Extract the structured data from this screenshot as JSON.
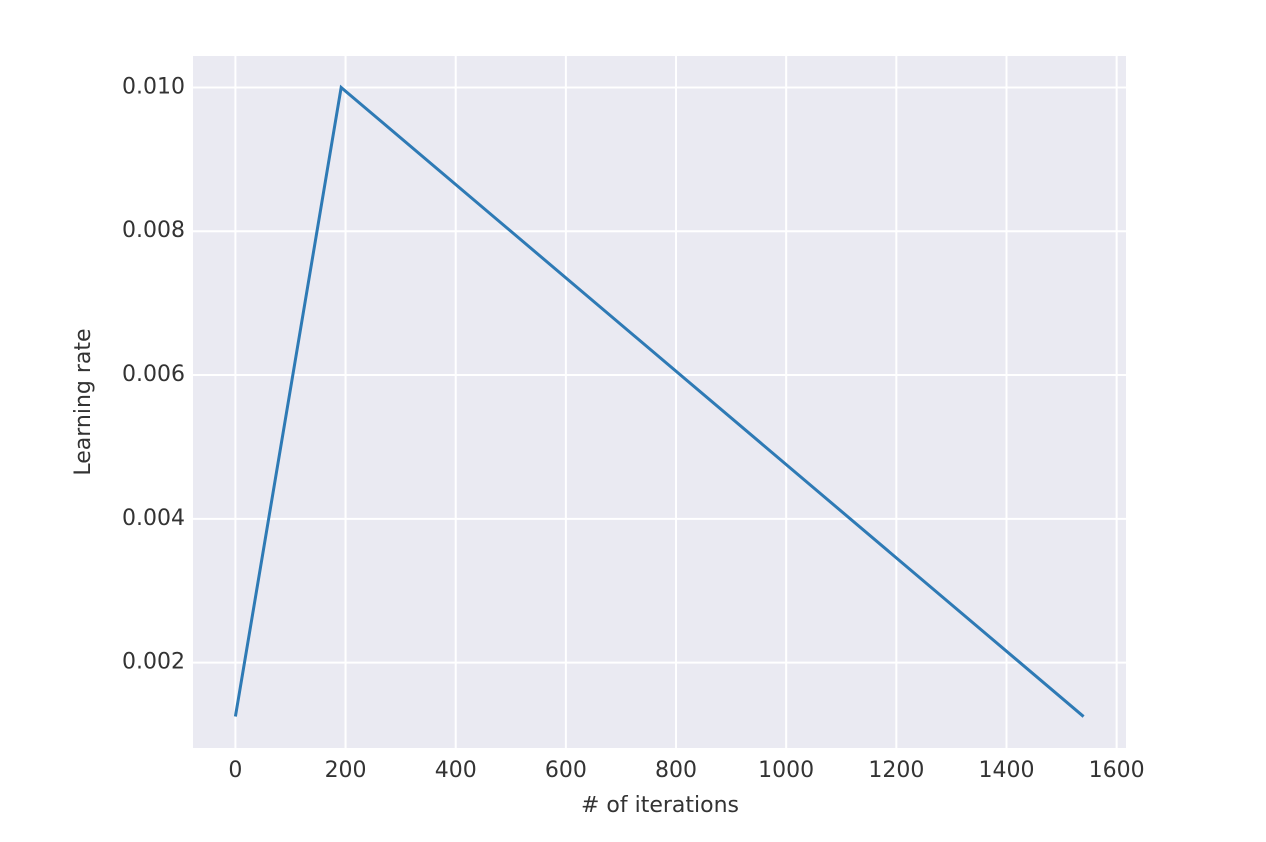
{
  "chart_data": {
    "type": "line",
    "x_label": "# of iterations",
    "y_label": "Learning rate",
    "x": [
      0,
      192,
      1540
    ],
    "series": [
      {
        "color": "#2e7ab5",
        "values": [
          0.00125,
          0.01,
          0.00125
        ]
      }
    ],
    "xlim": [
      -77,
      1617
    ],
    "ylim": [
      0.0008125,
      0.0104375
    ],
    "xticks": [
      0,
      200,
      400,
      600,
      800,
      1000,
      1200,
      1400,
      1600
    ],
    "yticks": [
      0.002,
      0.004,
      0.006,
      0.008,
      {
        "value": 0.01,
        "label": "0.010"
      }
    ],
    "grid": true,
    "background": "#eaeaf2"
  }
}
